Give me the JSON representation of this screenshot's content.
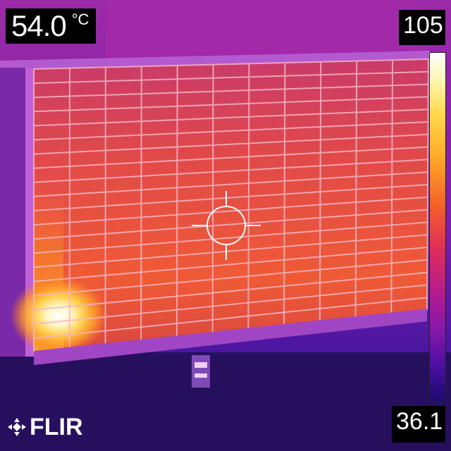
{
  "spot_meter": {
    "value": "54.0",
    "unit": "°C"
  },
  "scale": {
    "max": "105",
    "min": "36.1"
  },
  "brand": {
    "logo_text": "FLIR"
  },
  "palette": "iron",
  "colors": {
    "hot": "#ffffff",
    "warm": "#f5602a",
    "mid": "#b91c8c",
    "cool": "#2a0f8a"
  }
}
